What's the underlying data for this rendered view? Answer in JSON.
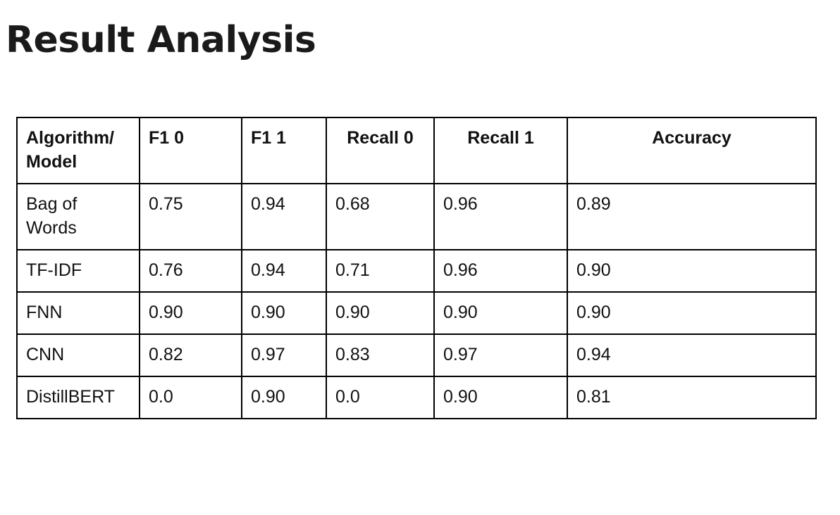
{
  "title": "Result Analysis",
  "table": {
    "columns": [
      "Algorithm/ Model",
      "F1 0",
      "F1 1",
      "Recall 0",
      "Recall 1",
      "Accuracy"
    ],
    "rows": [
      {
        "model": "Bag of Words",
        "f1_0": "0.75",
        "f1_1": "0.94",
        "recall_0": "0.68",
        "recall_1": "0.96",
        "accuracy": "0.89"
      },
      {
        "model": "TF-IDF",
        "f1_0": "0.76",
        "f1_1": "0.94",
        "recall_0": "0.71",
        "recall_1": "0.96",
        "accuracy": "0.90"
      },
      {
        "model": "FNN",
        "f1_0": "0.90",
        "f1_1": "0.90",
        "recall_0": "0.90",
        "recall_1": "0.90",
        "accuracy": "0.90"
      },
      {
        "model": "CNN",
        "f1_0": "0.82",
        "f1_1": "0.97",
        "recall_0": "0.83",
        "recall_1": "0.97",
        "accuracy": "0.94"
      },
      {
        "model": "DistillBERT",
        "f1_0": "0.0",
        "f1_1": "0.90",
        "recall_0": "0.0",
        "recall_1": "0.90",
        "accuracy": "0.81"
      }
    ]
  }
}
